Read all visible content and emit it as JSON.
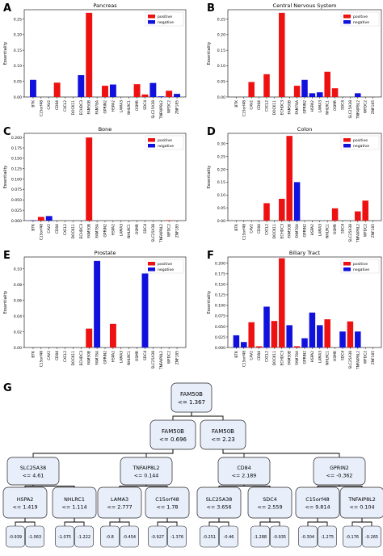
{
  "figure_title": "",
  "chart_data": [
    {
      "panel": "A",
      "type": "bar",
      "title": "Pancreas",
      "ylabel": "Essentiality",
      "ylim": [
        0,
        0.28
      ],
      "yticks": [
        0,
        0.05,
        0.1,
        0.15,
        0.2,
        0.25
      ],
      "tick_labels": [
        "0.00",
        "0.05",
        "0.10",
        "0.15",
        "0.20",
        "0.25"
      ],
      "categories": [
        "BTK",
        "C15orf48",
        "CAV2",
        "CD84",
        "CXCL2",
        "DOCK11",
        "ECHDC3",
        "FAM50B",
        "FAM78A",
        "GPRIN2",
        "HSPA2",
        "LAMA3",
        "NHLRC1",
        "OSMR",
        "SDC4",
        "SLC25A38",
        "TNFAIP8L2",
        "WFDC2",
        "ZNF185"
      ],
      "series": [
        {
          "name": "positive",
          "color": "#ee1111",
          "values": [
            0,
            0,
            0,
            0.046,
            0,
            0,
            0,
            0.27,
            0,
            0.036,
            0,
            0,
            0,
            0.041,
            0.008,
            0,
            0,
            0.02,
            0
          ]
        },
        {
          "name": "negative",
          "color": "#1111dd",
          "values": [
            0.055,
            0,
            0,
            0,
            0,
            0,
            0.07,
            0,
            0,
            0,
            0.04,
            0,
            0,
            0,
            0,
            0.045,
            0.002,
            0,
            0.01
          ]
        }
      ],
      "legend": "top-right"
    },
    {
      "panel": "B",
      "type": "bar",
      "title": "Central Nervous System",
      "ylabel": "Essentiality",
      "ylim": [
        0,
        0.28
      ],
      "yticks": [
        0,
        0.05,
        0.1,
        0.15,
        0.2,
        0.25
      ],
      "tick_labels": [
        "0.00",
        "0.05",
        "0.10",
        "0.15",
        "0.20",
        "0.25"
      ],
      "categories": [
        "BTK",
        "C15orf48",
        "CAV2",
        "CD84",
        "CXCL2",
        "DOCK11",
        "ECHDC3",
        "FAM50B",
        "FAM78A",
        "GPRIN2",
        "HSPA2",
        "LAMA3",
        "NHLRC1",
        "OSMR",
        "SDC4",
        "SLC25A38",
        "TNFAIP8L2",
        "WFDC2",
        "ZNF185"
      ],
      "series": [
        {
          "name": "positive",
          "color": "#ee1111",
          "values": [
            0,
            0,
            0.048,
            0,
            0.073,
            0,
            0.27,
            0,
            0.036,
            0,
            0,
            0,
            0.081,
            0.028,
            0,
            0,
            0,
            0,
            0
          ]
        },
        {
          "name": "negative",
          "color": "#1111dd",
          "values": [
            0,
            0,
            0,
            0,
            0,
            0,
            0,
            0,
            0,
            0.055,
            0.012,
            0.015,
            0,
            0,
            0,
            0,
            0.012,
            0,
            0
          ]
        }
      ],
      "legend": "top-right"
    },
    {
      "panel": "C",
      "type": "bar",
      "title": "Bone",
      "ylabel": "Essentiality",
      "ylim": [
        0,
        0.21
      ],
      "yticks": [
        0,
        0.025,
        0.05,
        0.075,
        0.1,
        0.125,
        0.15,
        0.175,
        0.2
      ],
      "tick_labels": [
        "0.000",
        "0.025",
        "0.050",
        "0.075",
        "0.100",
        "0.125",
        "0.150",
        "0.175",
        "0.200"
      ],
      "categories": [
        "BTK",
        "C15orf48",
        "CAV2",
        "CD84",
        "CXCL2",
        "DOCK11",
        "ECHDC3",
        "FAM50B",
        "FAM78A",
        "GPRIN2",
        "HSPA2",
        "LAMA3",
        "NHLRC1",
        "OSMR",
        "SDC4",
        "SLC25A38",
        "TNFAIP8L2",
        "WFDC2",
        "ZNF185"
      ],
      "series": [
        {
          "name": "positive",
          "color": "#ee1111",
          "values": [
            0,
            0.009,
            0,
            0,
            0,
            0,
            0,
            0.2,
            0,
            0,
            0,
            0,
            0,
            0,
            0,
            0,
            0,
            0.001,
            0
          ]
        },
        {
          "name": "negative",
          "color": "#1111dd",
          "values": [
            0.001,
            0,
            0.011,
            0,
            0,
            0,
            0,
            0,
            0,
            0,
            0,
            0,
            0,
            0,
            0,
            0,
            0,
            0,
            0
          ]
        }
      ],
      "legend": "top-right"
    },
    {
      "panel": "D",
      "type": "bar",
      "title": "Colon",
      "ylabel": "Essentiality",
      "ylim": [
        0,
        0.34
      ],
      "yticks": [
        0,
        0.05,
        0.1,
        0.15,
        0.2,
        0.25,
        0.3
      ],
      "tick_labels": [
        "0.00",
        "0.05",
        "0.10",
        "0.15",
        "0.20",
        "0.25",
        "0.30"
      ],
      "categories": [
        "BTK",
        "C15orf48",
        "CAV2",
        "CD84",
        "CXCL2",
        "DOCK11",
        "ECHDC3",
        "FAM50B",
        "FAM78A",
        "GPRIN2",
        "HSPA2",
        "LAMA3",
        "NHLRC1",
        "OSMR",
        "SDC4",
        "SLC25A38",
        "TNFAIP8L2",
        "WFDC2",
        "ZNF185"
      ],
      "series": [
        {
          "name": "positive",
          "color": "#ee1111",
          "values": [
            0,
            0,
            0,
            0,
            0.068,
            0,
            0.085,
            0.33,
            0,
            0,
            0,
            0,
            0,
            0.048,
            0,
            0,
            0.036,
            0.078,
            0
          ]
        },
        {
          "name": "negative",
          "color": "#1111dd",
          "values": [
            0,
            0,
            0,
            0,
            0,
            0,
            0,
            0,
            0.15,
            0,
            0,
            0,
            0,
            0,
            0,
            0,
            0,
            0,
            0
          ]
        }
      ],
      "legend": "top-right"
    },
    {
      "panel": "E",
      "type": "bar",
      "title": "Prostate",
      "ylabel": "Essentiality",
      "ylim": [
        0,
        0.115
      ],
      "yticks": [
        0,
        0.02,
        0.04,
        0.06,
        0.08,
        0.1
      ],
      "tick_labels": [
        "0.00",
        "0.02",
        "0.04",
        "0.06",
        "0.08",
        "0.10"
      ],
      "categories": [
        "BTK",
        "C15orf48",
        "CAV2",
        "CD84",
        "CXCL2",
        "DOCK11",
        "ECHDC3",
        "FAM50B",
        "FAM78A",
        "GPRIN2",
        "HSPA2",
        "LAMA3",
        "NHLRC1",
        "OSMR",
        "SDC4",
        "SLC25A38",
        "TNFAIP8L2",
        "WFDC2",
        "ZNF185"
      ],
      "series": [
        {
          "name": "positive",
          "color": "#ee1111",
          "values": [
            0,
            0,
            0,
            0,
            0,
            0,
            0,
            0.024,
            0,
            0,
            0.03,
            0,
            0,
            0,
            0,
            0,
            0,
            0,
            0
          ]
        },
        {
          "name": "negative",
          "color": "#1111dd",
          "values": [
            0,
            0,
            0,
            0,
            0,
            0,
            0,
            0,
            0.11,
            0,
            0,
            0,
            0,
            0,
            0.094,
            0,
            0,
            0,
            0
          ]
        }
      ],
      "legend": "top-right"
    },
    {
      "panel": "F",
      "type": "bar",
      "title": "Biliary Tract",
      "ylabel": "Essentiality",
      "ylim": [
        0,
        0.215
      ],
      "yticks": [
        0,
        0.025,
        0.05,
        0.075,
        0.1,
        0.125,
        0.15,
        0.175,
        0.2
      ],
      "tick_labels": [
        "0.000",
        "0.025",
        "0.050",
        "0.075",
        "0.100",
        "0.125",
        "0.150",
        "0.175",
        "0.200"
      ],
      "categories": [
        "BTK",
        "C15orf48",
        "CAV2",
        "CD84",
        "CXCL2",
        "DOCK11",
        "ECHDC3",
        "FAM50B",
        "FAM78A",
        "GPRIN2",
        "HSPA2",
        "LAMA3",
        "NHLRC1",
        "OSMR",
        "SDC4",
        "SLC25A38",
        "TNFAIP8L2",
        "WFDC2",
        "ZNF185"
      ],
      "series": [
        {
          "name": "positive",
          "color": "#ee1111",
          "values": [
            0,
            0,
            0.06,
            0.003,
            0,
            0.063,
            0.212,
            0,
            0.003,
            0,
            0,
            0,
            0.067,
            0,
            0,
            0.062,
            0,
            0,
            0
          ]
        },
        {
          "name": "negative",
          "color": "#1111dd",
          "values": [
            0.029,
            0.013,
            0,
            0,
            0.097,
            0,
            0,
            0.053,
            0,
            0.022,
            0.083,
            0.053,
            0,
            0,
            0.038,
            0,
            0.038,
            0,
            0
          ]
        }
      ],
      "legend": "top-right"
    }
  ],
  "tree": {
    "panel": "G",
    "root": {
      "name": "FAM50B",
      "rule": "<= 1.367"
    },
    "level1": [
      {
        "name": "FAM50B",
        "rule": "<= 0.696"
      },
      {
        "name": "FAM50B",
        "rule": "<= 2.23"
      }
    ],
    "level2": [
      {
        "name": "SLC25A38",
        "rule": "<= 4.61"
      },
      {
        "name": "TNFAIP8L2",
        "rule": "<= 0.144"
      },
      {
        "name": "CD84",
        "rule": "<= 2.189"
      },
      {
        "name": "GPRIN2",
        "rule": "<= -0.362"
      }
    ],
    "level3": [
      {
        "name": "HSPA2",
        "rule": "<= 1.419"
      },
      {
        "name": "NHLRC1",
        "rule": "<= 1.114"
      },
      {
        "name": "LAMA3",
        "rule": "<= 2.777"
      },
      {
        "name": "C15orf48",
        "rule": "<= 1.78"
      },
      {
        "name": "SLC25A38",
        "rule": "<= 3.656"
      },
      {
        "name": "SDC4",
        "rule": "<= 2.559"
      },
      {
        "name": "C15orf48",
        "rule": "<= 9.814"
      },
      {
        "name": "TNFAIP8L2",
        "rule": "<= 0.104"
      }
    ],
    "leaves": [
      "-0.939",
      "-1.063",
      "-1.075",
      "-1.222",
      "-0.8",
      "-0.454",
      "-0.927",
      "-1.376",
      "-0.251",
      "-0.46",
      "-1.288",
      "-0.935",
      "-0.304",
      "-1.275",
      "-0.176",
      "-0.265"
    ]
  }
}
